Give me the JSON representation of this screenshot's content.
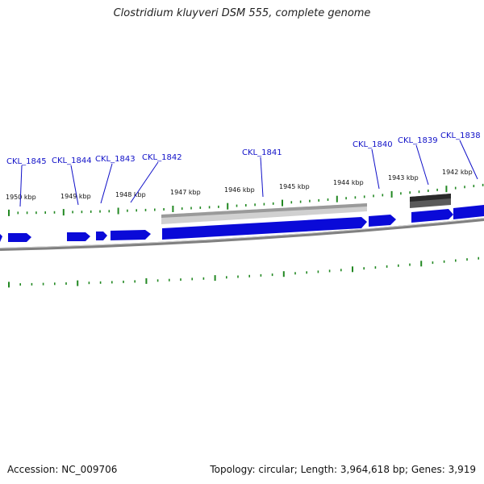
{
  "title": "Clostridium kluyveri DSM 555, complete genome",
  "accession_text": "Accession: NC_009706",
  "summary_text": "Topology: circular; Length: 3,964,618 bp; Genes: 3,919",
  "colors": {
    "gene_forward": "#0a0ad8",
    "gene_forward_hi": "#5a5aff",
    "feature_light": "#b4b4b4",
    "feature_dark": "#555555",
    "tick": "#228822",
    "backbone": "#777777",
    "label": "#1010c8"
  },
  "scale_labels": [
    "1950 kbp",
    "1949 kbp",
    "1948 kbp",
    "1947 kbp",
    "1946 kbp",
    "1945 kbp",
    "1944 kbp",
    "1943 kbp",
    "1942 kbp"
  ],
  "gene_labels": [
    "CKL_1845",
    "CKL_1844",
    "CKL_1843",
    "CKL_1842",
    "CKL_1841",
    "CKL_1840",
    "CKL_1839",
    "CKL_1838"
  ]
}
